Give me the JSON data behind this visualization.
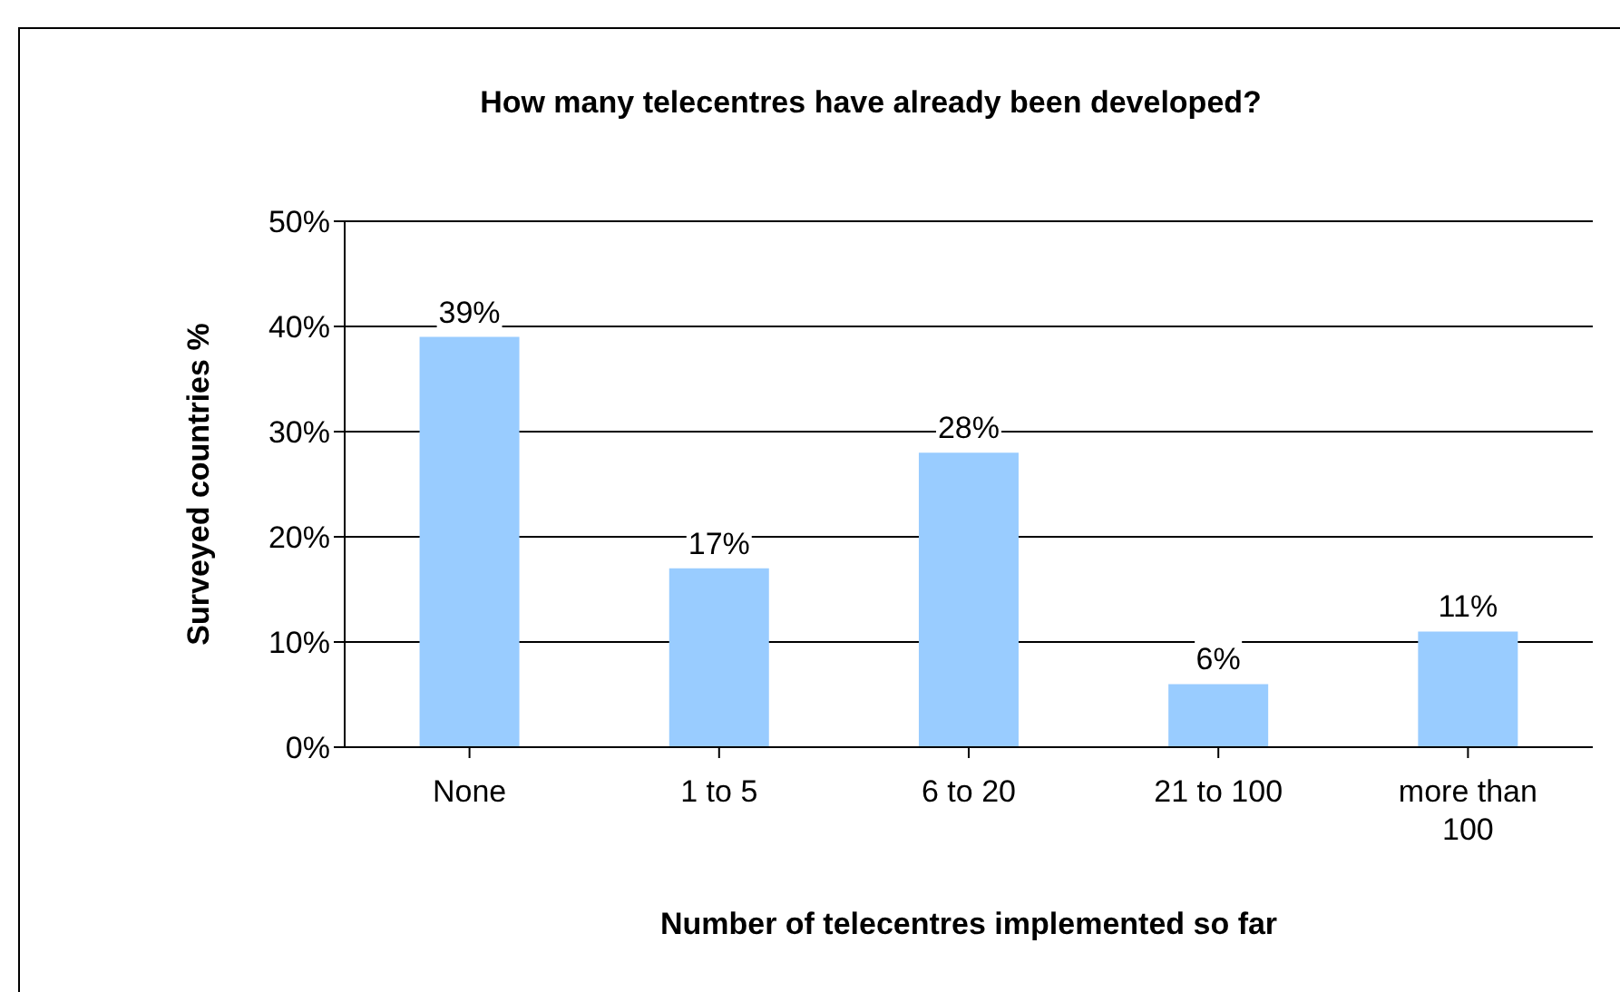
{
  "chart_data": {
    "type": "bar",
    "title": "How many telecentres have already been developed?",
    "xlabel": "Number of telecentres implemented so far",
    "ylabel": "Surveyed countries %",
    "categories": [
      "None",
      "1 to 5",
      "6 to 20",
      "21 to 100",
      "more than 100"
    ],
    "values": [
      39,
      17,
      28,
      6,
      11
    ],
    "color": "#99ccff",
    "value_labels": [
      "39%",
      "17%",
      "28%",
      "6%",
      "11%"
    ],
    "ylim": [
      0,
      50
    ],
    "yticks": [
      {
        "value": 0,
        "label": "0%"
      },
      {
        "value": 10,
        "label": "10%"
      },
      {
        "value": 20,
        "label": "20%"
      },
      {
        "value": 30,
        "label": "30%"
      },
      {
        "value": 40,
        "label": "40%"
      },
      {
        "value": 50,
        "label": "50%"
      }
    ],
    "grid": "y",
    "legend": false
  }
}
